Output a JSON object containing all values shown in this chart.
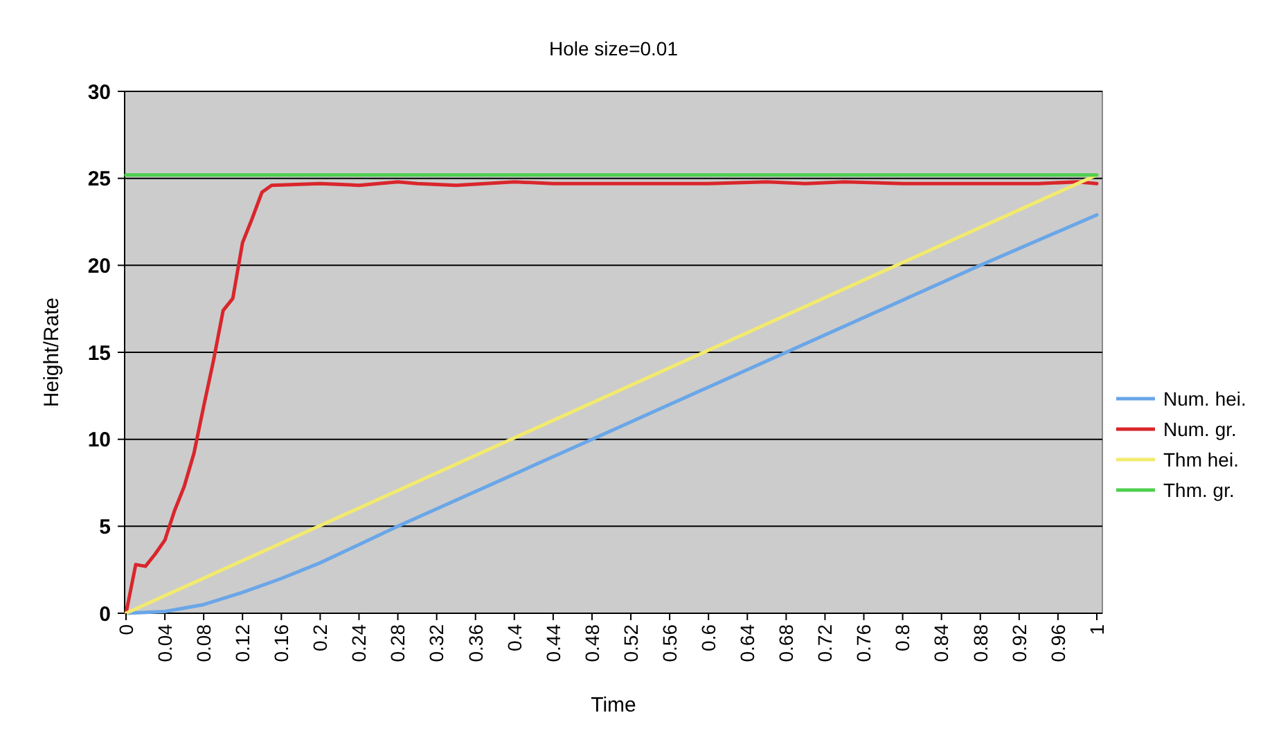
{
  "chart_data": {
    "type": "line",
    "title": "Hole size=0.01",
    "xlabel": "Time",
    "ylabel": "Height/Rate",
    "xlim": [
      0,
      1
    ],
    "xticks": [
      0,
      0.04,
      0.08,
      0.12,
      0.16,
      0.2,
      0.24,
      0.28,
      0.32,
      0.36,
      0.4,
      0.44,
      0.48,
      0.52,
      0.56,
      0.6,
      0.64,
      0.68,
      0.72,
      0.76,
      0.8,
      0.84,
      0.88,
      0.92,
      0.96,
      1
    ],
    "ylim": [
      0,
      30
    ],
    "yticks": [
      0,
      5,
      10,
      15,
      20,
      25,
      30
    ],
    "grid": "y",
    "legend": "right",
    "marker": "none",
    "line_style": "solid",
    "series": [
      {
        "name": "Num. hei.",
        "color": "#6aa6e8",
        "x": [
          0,
          0.04,
          0.08,
          0.12,
          0.16,
          0.2,
          0.28,
          0.48,
          0.68,
          0.88,
          1
        ],
        "values": [
          0,
          0.1,
          0.5,
          1.2,
          2,
          2.9,
          5,
          10,
          15,
          20,
          22.9
        ]
      },
      {
        "name": "Num. gr.",
        "color": "#d9262c",
        "x": [
          0,
          0.01,
          0.02,
          0.03,
          0.04,
          0.05,
          0.06,
          0.07,
          0.08,
          0.09,
          0.1,
          0.11,
          0.12,
          0.13,
          0.14,
          0.15,
          0.2,
          0.24,
          0.28,
          0.3,
          0.34,
          0.4,
          0.44,
          0.5,
          0.56,
          0.6,
          0.66,
          0.7,
          0.74,
          0.8,
          0.84,
          0.9,
          0.94,
          0.98,
          1
        ],
        "values": [
          0,
          2.8,
          2.7,
          3.4,
          4.2,
          5.9,
          7.3,
          9.2,
          11.9,
          14.5,
          17.4,
          18.1,
          21.3,
          22.7,
          24.2,
          24.6,
          24.7,
          24.6,
          24.8,
          24.7,
          24.6,
          24.8,
          24.7,
          24.7,
          24.7,
          24.7,
          24.8,
          24.7,
          24.8,
          24.7,
          24.7,
          24.7,
          24.7,
          24.8,
          24.7
        ]
      },
      {
        "name": "Thm hei.",
        "color": "#f2ea6e",
        "x": [
          0,
          1
        ],
        "values": [
          0,
          25.2
        ]
      },
      {
        "name": "Thm. gr.",
        "color": "#4fcf4f",
        "x": [
          0,
          1
        ],
        "values": [
          25.2,
          25.2
        ]
      }
    ]
  }
}
